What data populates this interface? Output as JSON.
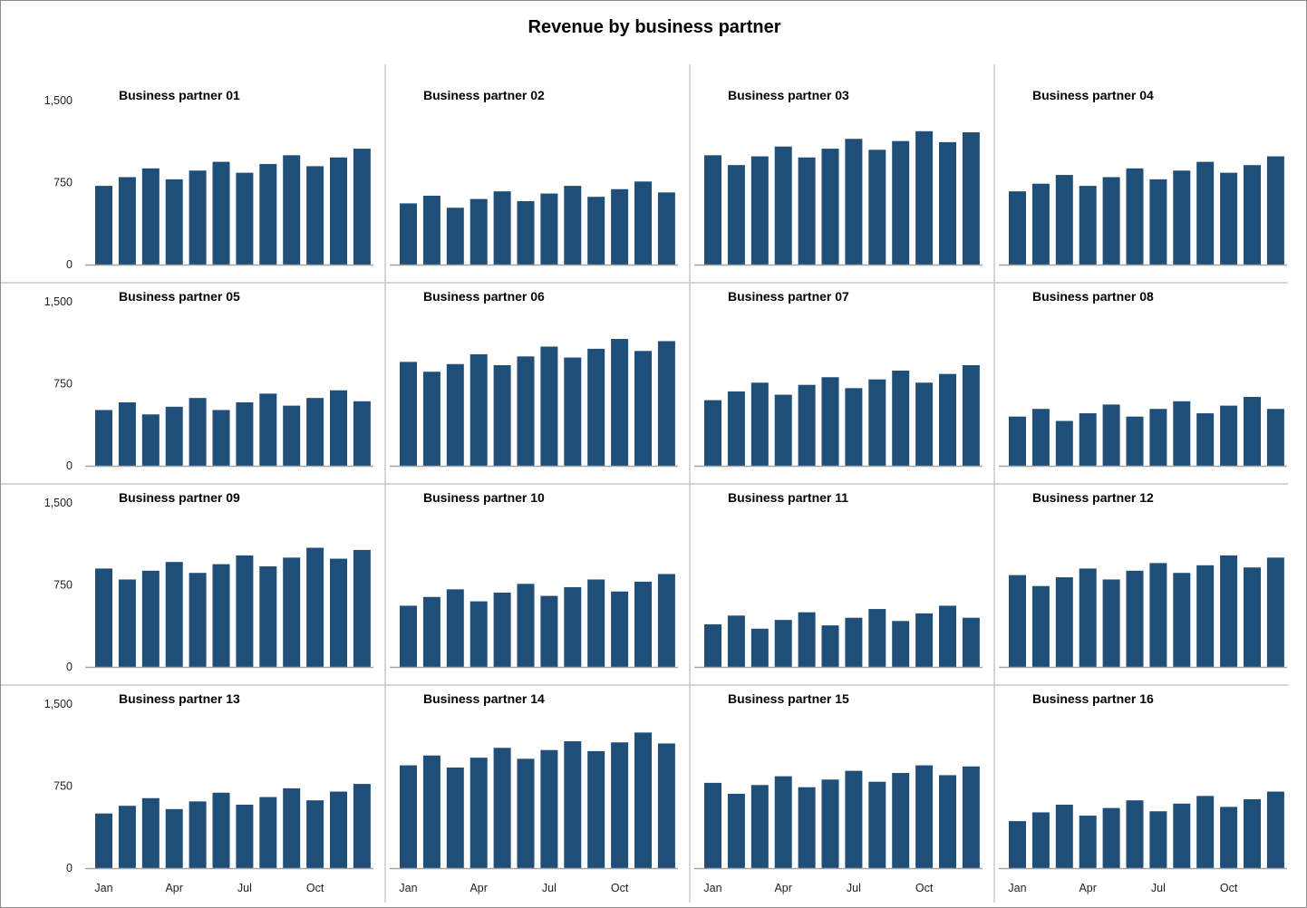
{
  "title": "Revenue by business partner",
  "chart_data": {
    "type": "bar",
    "title": "Revenue by business partner",
    "layout": "small-multiples 4x4",
    "categories": [
      "Jan",
      "Feb",
      "Mar",
      "Apr",
      "May",
      "Jun",
      "Jul",
      "Aug",
      "Sep",
      "Oct",
      "Nov",
      "Dec"
    ],
    "x_tick_labels": [
      "Jan",
      "Apr",
      "Jul",
      "Oct"
    ],
    "y_ticks": [
      0,
      750,
      1500
    ],
    "y_tick_labels": [
      "0",
      "750",
      "1,500"
    ],
    "ylim": [
      0,
      1500
    ],
    "grid": false,
    "bar_color": "#1F4E79",
    "series": [
      {
        "name": "Business partner 01",
        "values": [
          720,
          800,
          880,
          780,
          860,
          940,
          840,
          920,
          1000,
          900,
          980,
          1060
        ]
      },
      {
        "name": "Business partner 02",
        "values": [
          560,
          630,
          520,
          600,
          670,
          580,
          650,
          720,
          620,
          690,
          760,
          660
        ]
      },
      {
        "name": "Business partner 03",
        "values": [
          1000,
          910,
          990,
          1080,
          980,
          1060,
          1150,
          1050,
          1130,
          1220,
          1120,
          1210
        ]
      },
      {
        "name": "Business partner 04",
        "values": [
          670,
          740,
          820,
          720,
          800,
          880,
          780,
          860,
          940,
          840,
          910,
          990
        ]
      },
      {
        "name": "Business partner 05",
        "values": [
          510,
          580,
          470,
          540,
          620,
          510,
          580,
          660,
          550,
          620,
          690,
          590
        ]
      },
      {
        "name": "Business partner 06",
        "values": [
          950,
          860,
          930,
          1020,
          920,
          1000,
          1090,
          990,
          1070,
          1160,
          1050,
          1140
        ]
      },
      {
        "name": "Business partner 07",
        "values": [
          600,
          680,
          760,
          650,
          740,
          810,
          710,
          790,
          870,
          760,
          840,
          920
        ]
      },
      {
        "name": "Business partner 08",
        "values": [
          450,
          520,
          410,
          480,
          560,
          450,
          520,
          590,
          480,
          550,
          630,
          520
        ]
      },
      {
        "name": "Business partner 09",
        "values": [
          900,
          800,
          880,
          960,
          860,
          940,
          1020,
          920,
          1000,
          1090,
          990,
          1070
        ]
      },
      {
        "name": "Business partner 10",
        "values": [
          560,
          640,
          710,
          600,
          680,
          760,
          650,
          730,
          800,
          690,
          780,
          850
        ]
      },
      {
        "name": "Business partner 11",
        "values": [
          390,
          470,
          350,
          430,
          500,
          380,
          450,
          530,
          420,
          490,
          560,
          450
        ]
      },
      {
        "name": "Business partner 12",
        "values": [
          840,
          740,
          820,
          900,
          800,
          880,
          950,
          860,
          930,
          1020,
          910,
          1000
        ]
      },
      {
        "name": "Business partner 13",
        "values": [
          500,
          570,
          640,
          540,
          610,
          690,
          580,
          650,
          730,
          620,
          700,
          770
        ]
      },
      {
        "name": "Business partner 14",
        "values": [
          940,
          1030,
          920,
          1010,
          1100,
          1000,
          1080,
          1160,
          1070,
          1150,
          1240,
          1140
        ]
      },
      {
        "name": "Business partner 15",
        "values": [
          780,
          680,
          760,
          840,
          740,
          810,
          890,
          790,
          870,
          940,
          850,
          930
        ]
      },
      {
        "name": "Business partner 16",
        "values": [
          430,
          510,
          580,
          480,
          550,
          620,
          520,
          590,
          660,
          560,
          630,
          700
        ]
      }
    ]
  }
}
